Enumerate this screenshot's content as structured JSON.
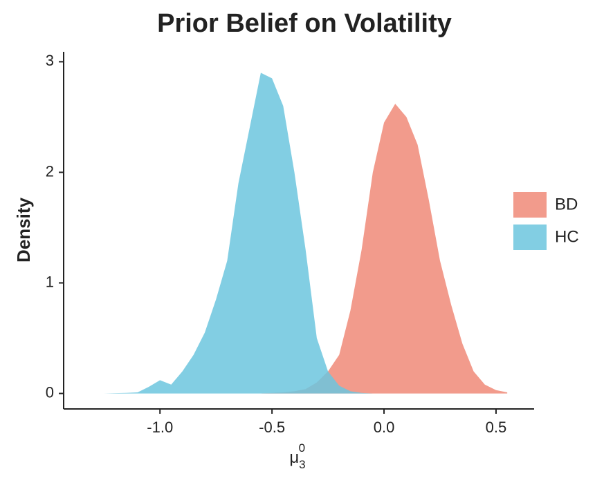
{
  "chart_data": {
    "type": "density",
    "title": "Prior Belief on Volatility",
    "y_label": "Density",
    "x_label": {
      "base": "μ",
      "subscript": "3",
      "superscript": "0"
    },
    "x": [
      -1.3,
      -1.25,
      -1.2,
      -1.15,
      -1.1,
      -1.05,
      -1.0,
      -0.95,
      -0.9,
      -0.85,
      -0.8,
      -0.75,
      -0.7,
      -0.65,
      -0.6,
      -0.55,
      -0.5,
      -0.45,
      -0.4,
      -0.35,
      -0.3,
      -0.25,
      -0.2,
      -0.15,
      -0.1,
      -0.05,
      0.0,
      0.05,
      0.1,
      0.15,
      0.2,
      0.25,
      0.3,
      0.35,
      0.4,
      0.45,
      0.5,
      0.55
    ],
    "series": [
      {
        "name": "BD",
        "color": "#f08a78",
        "values": [
          0,
          0,
          0,
          0,
          0,
          0,
          0,
          0,
          0,
          0,
          0,
          0,
          0,
          0,
          0,
          0,
          0.005,
          0.01,
          0.02,
          0.04,
          0.1,
          0.2,
          0.35,
          0.75,
          1.3,
          2.0,
          2.45,
          2.62,
          2.5,
          2.25,
          1.75,
          1.2,
          0.8,
          0.45,
          0.2,
          0.08,
          0.03,
          0.01
        ]
      },
      {
        "name": "HC",
        "color": "#6cc5de",
        "values": [
          0,
          0,
          0.003,
          0.005,
          0.01,
          0.06,
          0.12,
          0.08,
          0.2,
          0.35,
          0.55,
          0.85,
          1.2,
          1.9,
          2.4,
          2.9,
          2.85,
          2.6,
          2.0,
          1.3,
          0.5,
          0.2,
          0.07,
          0.02,
          0.005,
          0,
          0,
          0,
          0,
          0,
          0,
          0,
          0,
          0,
          0,
          0,
          0,
          0
        ]
      }
    ],
    "xlim": [
      -1.43,
      0.67
    ],
    "ylim": [
      -0.14,
      3.09
    ],
    "xticks": [
      {
        "value": -1.0,
        "label": "-1.0"
      },
      {
        "value": -0.5,
        "label": "-0.5"
      },
      {
        "value": 0.0,
        "label": "0.0"
      },
      {
        "value": 0.5,
        "label": "0.5"
      }
    ],
    "yticks": [
      0,
      1,
      2,
      3
    ],
    "opacity": 0.85
  }
}
